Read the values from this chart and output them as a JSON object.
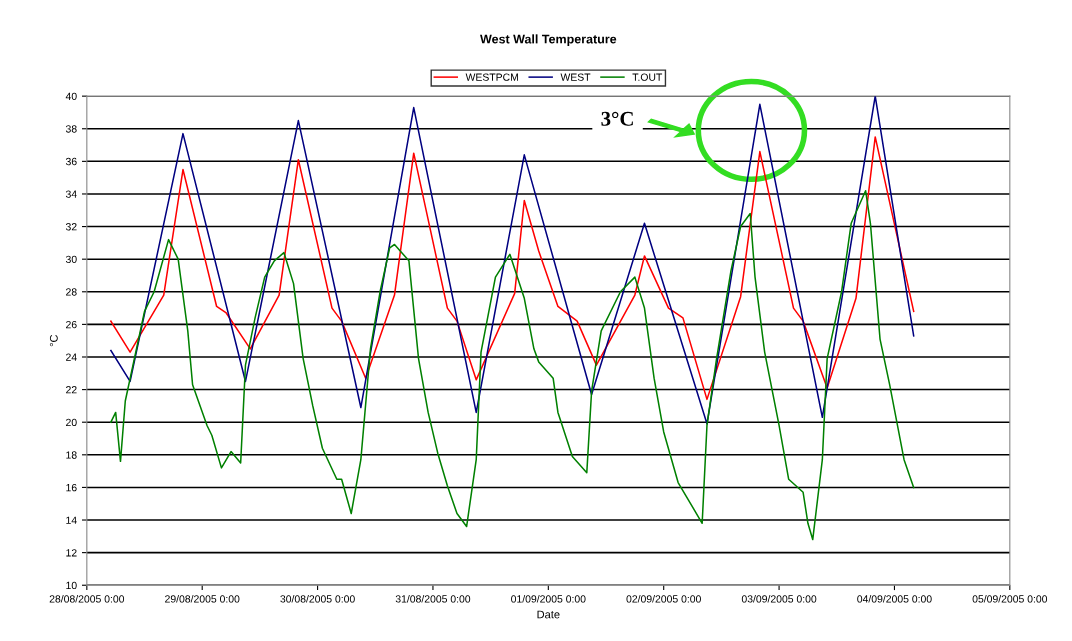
{
  "chart_data": {
    "type": "line",
    "title": "West Wall Temperature",
    "xlabel": "Date",
    "ylabel": "°C",
    "annotations": [
      "3°C"
    ],
    "legend": "top",
    "grid": "y",
    "marker": "none",
    "line_style": "solid",
    "xlim": [
      "2005-08-28",
      "2005-09-05"
    ],
    "xticks": [
      {
        "value": "2005-08-28",
        "label": "28/08/2005 0:00"
      },
      {
        "value": "2005-08-29",
        "label": "29/08/2005 0:00"
      },
      {
        "value": "2005-08-30",
        "label": "30/08/2005 0:00"
      },
      {
        "value": "2005-08-31",
        "label": "31/08/2005 0:00"
      },
      {
        "value": "2005-09-01",
        "label": "01/09/2005 0:00"
      },
      {
        "value": "2005-09-02",
        "label": "02/09/2005 0:00"
      },
      {
        "value": "2005-09-03",
        "label": "03/09/2005 0:00"
      },
      {
        "value": "2005-09-04",
        "label": "04/09/2005 0:00"
      },
      {
        "value": "2005-09-05",
        "label": "05/09/2005 0:00"
      }
    ],
    "ylim": [
      10,
      40
    ],
    "yticks": [
      10,
      12,
      14,
      16,
      18,
      20,
      22,
      24,
      26,
      28,
      30,
      32,
      34,
      36,
      38,
      40
    ],
    "series": [
      {
        "name": "WESTPCM",
        "color": "#ff0000",
        "x": [
          "2005-08-28T05:00",
          "2005-08-28T09:00",
          "2005-08-28T16:00",
          "2005-08-28T20:00",
          "2005-08-29T03:00",
          "2005-08-29T05:00",
          "2005-08-29T10:00",
          "2005-08-29T16:00",
          "2005-08-29T20:00",
          "2005-08-30T03:00",
          "2005-08-30T05:00",
          "2005-08-30T10:00",
          "2005-08-30T16:00",
          "2005-08-30T20:00",
          "2005-08-31T03:00",
          "2005-08-31T05:00",
          "2005-08-31T09:00",
          "2005-08-31T17:00",
          "2005-08-31T19:00",
          "2005-08-31T22:00",
          "2005-09-01T02:00",
          "2005-09-01T06:00",
          "2005-09-01T10:00",
          "2005-09-01T18:00",
          "2005-09-01T20:00",
          "2005-09-02T01:00",
          "2005-09-02T04:00",
          "2005-09-02T09:00",
          "2005-09-02T16:00",
          "2005-09-02T20:00",
          "2005-09-03T03:00",
          "2005-09-03T05:00",
          "2005-09-03T10:00",
          "2005-09-03T16:00",
          "2005-09-03T20:00",
          "2005-09-04T04:00"
        ],
        "values": [
          26.2,
          24.3,
          27.8,
          35.5,
          27.1,
          26.7,
          24.5,
          27.8,
          36.1,
          27.0,
          26.2,
          22.7,
          27.8,
          36.5,
          27.0,
          26.2,
          22.6,
          27.9,
          33.6,
          30.5,
          27.1,
          26.2,
          23.5,
          27.8,
          30.2,
          27.0,
          26.4,
          21.4,
          27.7,
          36.6,
          27.0,
          26.2,
          22.1,
          27.6,
          37.5,
          26.8
        ]
      },
      {
        "name": "WEST",
        "color": "#000080",
        "x": [
          "2005-08-28T05:00",
          "2005-08-28T09:00",
          "2005-08-28T20:00",
          "2005-08-29T09:00",
          "2005-08-29T20:00",
          "2005-08-30T09:00",
          "2005-08-30T20:00",
          "2005-08-31T09:00",
          "2005-08-31T19:00",
          "2005-09-01T09:00",
          "2005-09-01T20:00",
          "2005-09-02T09:00",
          "2005-09-02T20:00",
          "2005-09-03T09:00",
          "2005-09-03T20:00",
          "2005-09-04T04:00"
        ],
        "values": [
          24.4,
          22.5,
          37.7,
          22.5,
          38.5,
          20.9,
          39.3,
          20.6,
          36.4,
          21.7,
          32.2,
          19.9,
          39.5,
          20.3,
          40.0,
          25.3
        ]
      },
      {
        "name": "T.OUT",
        "color": "#008000",
        "x": [
          "2005-08-28T05:00",
          "2005-08-28T06:00",
          "2005-08-28T07:00",
          "2005-08-28T08:00",
          "2005-08-28T12:00",
          "2005-08-28T14:00",
          "2005-08-28T17:00",
          "2005-08-28T19:00",
          "2005-08-28T21:00",
          "2005-08-28T22:00",
          "2005-08-29T01:00",
          "2005-08-29T02:00",
          "2005-08-29T04:00",
          "2005-08-29T06:00",
          "2005-08-29T08:00",
          "2005-08-29T09:00",
          "2005-08-29T11:00",
          "2005-08-29T13:00",
          "2005-08-29T15:00",
          "2005-08-29T17:00",
          "2005-08-29T19:00",
          "2005-08-29T21:00",
          "2005-08-29T23:00",
          "2005-08-30T01:00",
          "2005-08-30T04:00",
          "2005-08-30T05:00",
          "2005-08-30T07:00",
          "2005-08-30T09:00",
          "2005-08-30T11:00",
          "2005-08-30T13:00",
          "2005-08-30T15:00",
          "2005-08-30T16:00",
          "2005-08-30T19:00",
          "2005-08-30T21:00",
          "2005-08-30T23:00",
          "2005-08-31T01:00",
          "2005-08-31T03:00",
          "2005-08-31T05:00",
          "2005-08-31T07:00",
          "2005-08-31T09:00",
          "2005-08-31T10:00",
          "2005-08-31T13:00",
          "2005-08-31T16:00",
          "2005-08-31T19:00",
          "2005-08-31T21:00",
          "2005-08-31T22:00",
          "2005-09-01T01:00",
          "2005-09-01T02:00",
          "2005-09-01T05:00",
          "2005-09-01T08:00",
          "2005-09-01T09:00",
          "2005-09-01T11:00",
          "2005-09-01T15:00",
          "2005-09-01T18:00",
          "2005-09-01T20:00",
          "2005-09-01T22:00",
          "2005-09-02T00:00",
          "2005-09-02T03:00",
          "2005-09-02T05:00",
          "2005-09-02T08:00",
          "2005-09-02T09:00",
          "2005-09-02T11:00",
          "2005-09-02T14:00",
          "2005-09-02T16:00",
          "2005-09-02T18:00",
          "2005-09-02T19:00",
          "2005-09-02T21:00",
          "2005-09-03T00:00",
          "2005-09-03T02:00",
          "2005-09-03T05:00",
          "2005-09-03T06:00",
          "2005-09-03T07:00",
          "2005-09-03T09:00",
          "2005-09-03T10:00",
          "2005-09-03T13:00",
          "2005-09-03T15:00",
          "2005-09-03T18:00",
          "2005-09-03T19:00",
          "2005-09-03T21:00",
          "2005-09-03T23:00",
          "2005-09-04T02:00",
          "2005-09-04T04:00"
        ],
        "values": [
          20.0,
          20.6,
          17.6,
          21.3,
          26.8,
          28.0,
          31.2,
          30.0,
          25.6,
          22.3,
          19.8,
          19.2,
          17.2,
          18.2,
          17.5,
          23.5,
          26.4,
          28.9,
          29.9,
          30.4,
          28.5,
          23.9,
          21.0,
          18.4,
          16.5,
          16.5,
          14.4,
          17.7,
          24.5,
          28.0,
          30.7,
          30.9,
          29.9,
          23.9,
          20.6,
          18.1,
          16.1,
          14.4,
          13.6,
          17.7,
          24.3,
          28.9,
          30.3,
          27.6,
          24.5,
          23.7,
          22.7,
          20.6,
          17.9,
          16.9,
          21.9,
          25.6,
          28.0,
          28.9,
          27.0,
          22.7,
          19.4,
          16.3,
          15.3,
          13.8,
          19.8,
          23.9,
          29.3,
          32.0,
          32.8,
          28.9,
          24.3,
          19.8,
          16.5,
          15.7,
          13.8,
          12.8,
          17.7,
          23.9,
          28.0,
          32.2,
          34.2,
          32.2,
          25.1,
          22.3,
          17.7,
          16.0
        ]
      }
    ]
  }
}
